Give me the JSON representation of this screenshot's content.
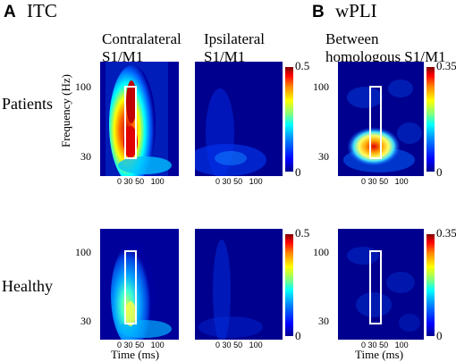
{
  "panels": [
    {
      "letter": "A",
      "title": "ITC"
    },
    {
      "letter": "B",
      "title": "wPLI"
    }
  ],
  "columns": {
    "contralateral": [
      "Contralateral",
      "S1/M1"
    ],
    "ipsilateral": [
      "Ipsilateral",
      "S1/M1"
    ],
    "between": [
      "Between",
      "homologous S1/M1"
    ]
  },
  "rows": {
    "patients": "Patients",
    "healthy": "Healthy"
  },
  "axes": {
    "ylabel": "Frequency (Hz)",
    "xlabel": "Time (ms)",
    "yticks": [
      "100",
      "30"
    ],
    "xticks": [
      "0",
      "30",
      "50",
      "100"
    ]
  },
  "colorbars": {
    "itc": {
      "max": "0.5",
      "min": "0"
    },
    "wpli": {
      "max": "0.35",
      "min": "0"
    }
  },
  "colors": {
    "roi_box": "#ffffff",
    "background_low": "#00008f"
  }
}
